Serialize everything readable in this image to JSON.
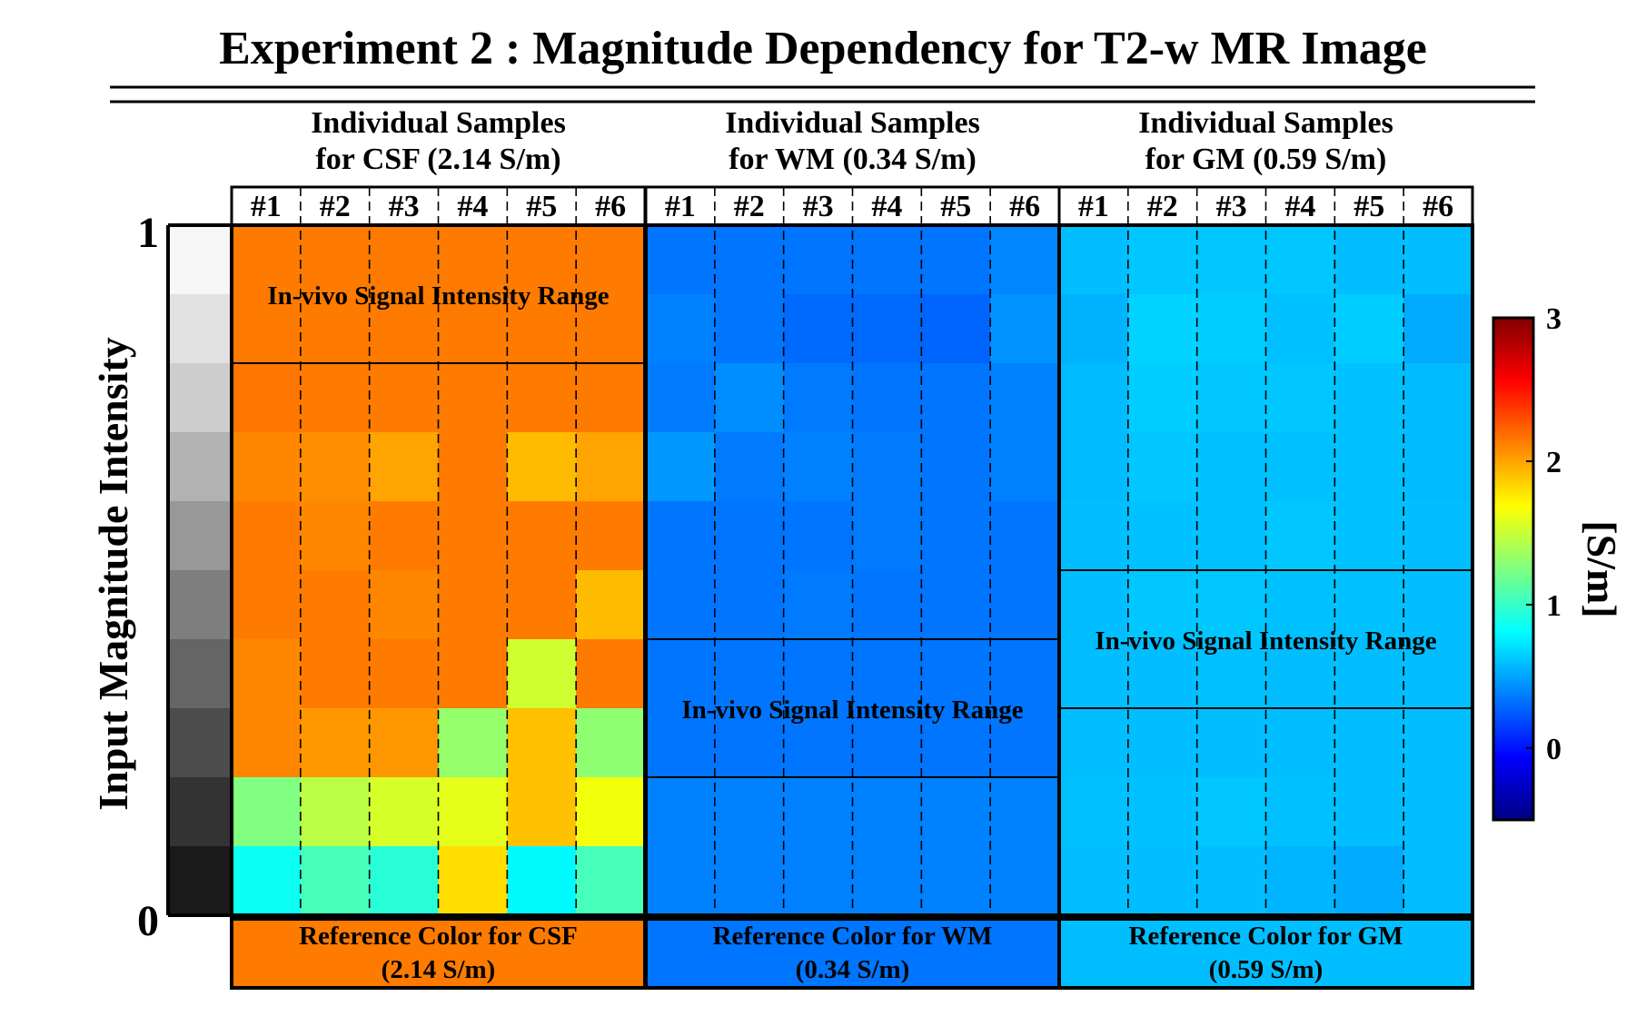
{
  "title": "Experiment 2 : Magnitude Dependency for T2-w MR Image",
  "y_axis": {
    "label": "Input Magnitude Intensity",
    "top_label": "1",
    "bottom_label": "0"
  },
  "grayscale_levels": [
    "#f7f7f7",
    "#e1e1e1",
    "#cdcdcd",
    "#b2b2b2",
    "#989898",
    "#7e7e7e",
    "#656565",
    "#4c4c4c",
    "#333333",
    "#1a1a1a"
  ],
  "colorbar": {
    "unit": "[S/m]",
    "min": -0.5,
    "max": 3,
    "ticks": [
      "3",
      "2",
      "1",
      "0"
    ],
    "tick_values": [
      3,
      2,
      1,
      0
    ]
  },
  "chart_data": {
    "type": "heatmap",
    "title": "Experiment 2 : Magnitude Dependency for T2-w MR Image",
    "ylabel": "Input Magnitude Intensity",
    "ylim": [
      0,
      1
    ],
    "colorbar_label": "[S/m]",
    "colorbar_range": [
      -0.5,
      3
    ],
    "row_order": "top (magnitude 1) to bottom (magnitude 0)",
    "panels": [
      {
        "header": [
          "Individual Samples",
          "for CSF (2.14 S/m)"
        ],
        "samples": [
          "#1",
          "#2",
          "#3",
          "#4",
          "#5",
          "#6"
        ],
        "invivo_label": "In-vivo Signal Intensity Range",
        "invivo_row_range": [
          0,
          2
        ],
        "reference_label": [
          "Reference Color for CSF",
          "(2.14 S/m)"
        ],
        "reference_value": 2.14,
        "values": [
          [
            2.14,
            2.14,
            2.14,
            2.14,
            2.14,
            2.14
          ],
          [
            2.14,
            2.14,
            2.14,
            2.14,
            2.14,
            2.14
          ],
          [
            2.16,
            2.14,
            2.14,
            2.14,
            2.14,
            2.14
          ],
          [
            2.1,
            2.08,
            2.0,
            2.14,
            1.92,
            2.0
          ],
          [
            2.14,
            2.1,
            2.14,
            2.14,
            2.14,
            2.14
          ],
          [
            2.14,
            2.14,
            2.1,
            2.14,
            2.14,
            1.92
          ],
          [
            2.1,
            2.14,
            2.14,
            2.14,
            1.52,
            2.14
          ],
          [
            2.1,
            2.04,
            2.04,
            1.32,
            1.9,
            1.3
          ],
          [
            1.25,
            1.45,
            1.55,
            1.6,
            1.9,
            1.65
          ],
          [
            0.85,
            1.05,
            0.95,
            1.8,
            0.8,
            1.05
          ]
        ]
      },
      {
        "header": [
          "Individual Samples",
          "for WM (0.34 S/m)"
        ],
        "samples": [
          "#1",
          "#2",
          "#3",
          "#4",
          "#5",
          "#6"
        ],
        "invivo_label": "In-vivo Signal Intensity Range",
        "invivo_row_range": [
          6,
          8
        ],
        "reference_label": [
          "Reference Color for WM",
          "(0.34 S/m)"
        ],
        "reference_value": 0.34,
        "values": [
          [
            0.34,
            0.34,
            0.34,
            0.34,
            0.34,
            0.4
          ],
          [
            0.38,
            0.34,
            0.3,
            0.3,
            0.28,
            0.44
          ],
          [
            0.36,
            0.42,
            0.36,
            0.34,
            0.34,
            0.38
          ],
          [
            0.46,
            0.36,
            0.38,
            0.36,
            0.34,
            0.38
          ],
          [
            0.34,
            0.34,
            0.34,
            0.36,
            0.34,
            0.34
          ],
          [
            0.34,
            0.34,
            0.36,
            0.34,
            0.34,
            0.34
          ],
          [
            0.34,
            0.34,
            0.34,
            0.34,
            0.34,
            0.34
          ],
          [
            0.34,
            0.34,
            0.34,
            0.34,
            0.34,
            0.34
          ],
          [
            0.38,
            0.38,
            0.38,
            0.38,
            0.38,
            0.38
          ],
          [
            0.38,
            0.38,
            0.38,
            0.38,
            0.38,
            0.38
          ]
        ]
      },
      {
        "header": [
          "Individual Samples",
          "for GM (0.59 S/m)"
        ],
        "samples": [
          "#1",
          "#2",
          "#3",
          "#4",
          "#5",
          "#6"
        ],
        "invivo_label": "In-vivo Signal Intensity Range",
        "invivo_row_range": [
          5,
          7
        ],
        "reference_label": [
          "Reference Color for GM",
          "(0.59 S/m)"
        ],
        "reference_value": 0.59,
        "values": [
          [
            0.59,
            0.62,
            0.62,
            0.62,
            0.59,
            0.59
          ],
          [
            0.55,
            0.66,
            0.64,
            0.6,
            0.64,
            0.52
          ],
          [
            0.58,
            0.64,
            0.62,
            0.62,
            0.6,
            0.58
          ],
          [
            0.58,
            0.62,
            0.6,
            0.6,
            0.6,
            0.58
          ],
          [
            0.59,
            0.6,
            0.6,
            0.62,
            0.6,
            0.59
          ],
          [
            0.59,
            0.62,
            0.62,
            0.6,
            0.6,
            0.59
          ],
          [
            0.59,
            0.59,
            0.6,
            0.59,
            0.59,
            0.59
          ],
          [
            0.59,
            0.59,
            0.59,
            0.59,
            0.59,
            0.59
          ],
          [
            0.6,
            0.6,
            0.62,
            0.6,
            0.59,
            0.59
          ],
          [
            0.59,
            0.59,
            0.59,
            0.56,
            0.52,
            0.59
          ]
        ]
      }
    ]
  }
}
